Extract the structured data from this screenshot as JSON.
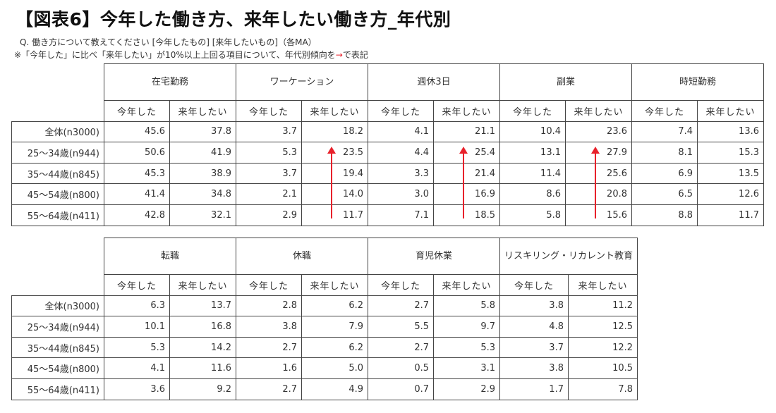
{
  "header": {
    "title": "【図表6】今年した働き方、来年したい働き方_年代別",
    "question": "Q. 働き方について教えてください [今年したもの] [来年したいもの]（各MA）",
    "note_before": "※「今年した」に比べ「来年したい」が10%以上上回る項目について、年代別傾向を",
    "note_arrow": "→",
    "note_after": "で表記",
    "arrow_color": "#e8212b"
  },
  "sub_labels": {
    "this_year": "今年した",
    "next_year": "来年したい"
  },
  "rows": [
    "全体(n3000)",
    "25～34歳(n944)",
    "35～44歳(n845)",
    "45～54歳(n800)",
    "55～64歳(n411)"
  ],
  "table1": {
    "groups": [
      {
        "name": "在宅勤務",
        "this_year": [
          "45.6",
          "50.6",
          "45.3",
          "41.4",
          "42.8"
        ],
        "next_year": [
          "37.8",
          "41.9",
          "38.9",
          "34.8",
          "32.1"
        ]
      },
      {
        "name": "ワーケーション",
        "this_year": [
          "3.7",
          "5.3",
          "3.7",
          "2.1",
          "2.9"
        ],
        "next_year": [
          "18.2",
          "23.5",
          "19.4",
          "14.0",
          "11.7"
        ],
        "trend_arrow": true
      },
      {
        "name": "週休3日",
        "this_year": [
          "4.1",
          "4.4",
          "3.3",
          "3.0",
          "7.1"
        ],
        "next_year": [
          "21.1",
          "25.4",
          "21.4",
          "16.9",
          "18.5"
        ],
        "trend_arrow": true
      },
      {
        "name": "副業",
        "this_year": [
          "10.4",
          "13.1",
          "11.4",
          "8.6",
          "5.8"
        ],
        "next_year": [
          "23.6",
          "27.9",
          "25.6",
          "20.8",
          "15.6"
        ],
        "trend_arrow": true
      },
      {
        "name": "時短勤務",
        "this_year": [
          "7.4",
          "8.1",
          "6.9",
          "6.5",
          "8.8"
        ],
        "next_year": [
          "13.6",
          "15.3",
          "13.5",
          "12.6",
          "11.7"
        ]
      }
    ]
  },
  "table2": {
    "groups": [
      {
        "name": "転職",
        "this_year": [
          "6.3",
          "10.1",
          "5.3",
          "4.1",
          "3.6"
        ],
        "next_year": [
          "13.7",
          "16.8",
          "14.2",
          "11.6",
          "9.2"
        ]
      },
      {
        "name": "休職",
        "this_year": [
          "2.8",
          "3.8",
          "2.7",
          "1.6",
          "2.7"
        ],
        "next_year": [
          "6.2",
          "7.9",
          "6.2",
          "5.0",
          "4.9"
        ]
      },
      {
        "name": "育児休業",
        "this_year": [
          "2.7",
          "5.5",
          "2.7",
          "0.5",
          "0.7"
        ],
        "next_year": [
          "5.8",
          "9.7",
          "5.3",
          "3.1",
          "2.9"
        ]
      },
      {
        "name": "リスキリング・リカレント教育",
        "this_year": [
          "3.8",
          "4.8",
          "3.7",
          "3.8",
          "1.7"
        ],
        "next_year": [
          "11.2",
          "12.5",
          "12.2",
          "10.5",
          "7.8"
        ]
      }
    ]
  }
}
